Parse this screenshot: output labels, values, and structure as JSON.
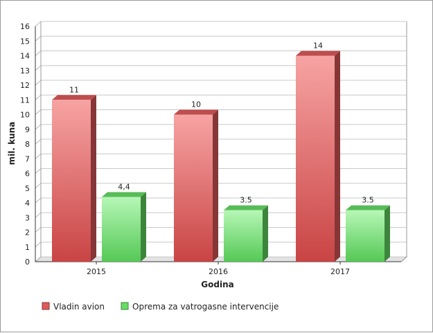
{
  "chart_data": {
    "type": "bar",
    "title": "",
    "xlabel": "Godina",
    "ylabel": "mil. kuna",
    "categories": [
      "2015",
      "2016",
      "2017"
    ],
    "ylim": [
      0,
      16
    ],
    "yticks": [
      0,
      1,
      2,
      3,
      4,
      5,
      6,
      7,
      8,
      9,
      10,
      11,
      12,
      13,
      14,
      15,
      16
    ],
    "ytick_labels": [
      "0",
      "1",
      "2",
      "3",
      "4",
      "5",
      "6",
      "7",
      "8",
      "9",
      "10",
      "11",
      "12",
      "13",
      "14",
      "15",
      "16"
    ],
    "grid": true,
    "legend_position": "bottom-left",
    "series": [
      {
        "name": "Vladin avion",
        "color": "#e05a5a",
        "values": [
          11,
          10,
          14
        ],
        "labels": [
          "11",
          "10",
          "14"
        ]
      },
      {
        "name": "Oprema za vatrogasne intervencije",
        "color": "#66dd66",
        "values": [
          4.4,
          3.5,
          3.5
        ],
        "labels": [
          "4,4",
          "3.5",
          "3.5"
        ]
      }
    ]
  }
}
